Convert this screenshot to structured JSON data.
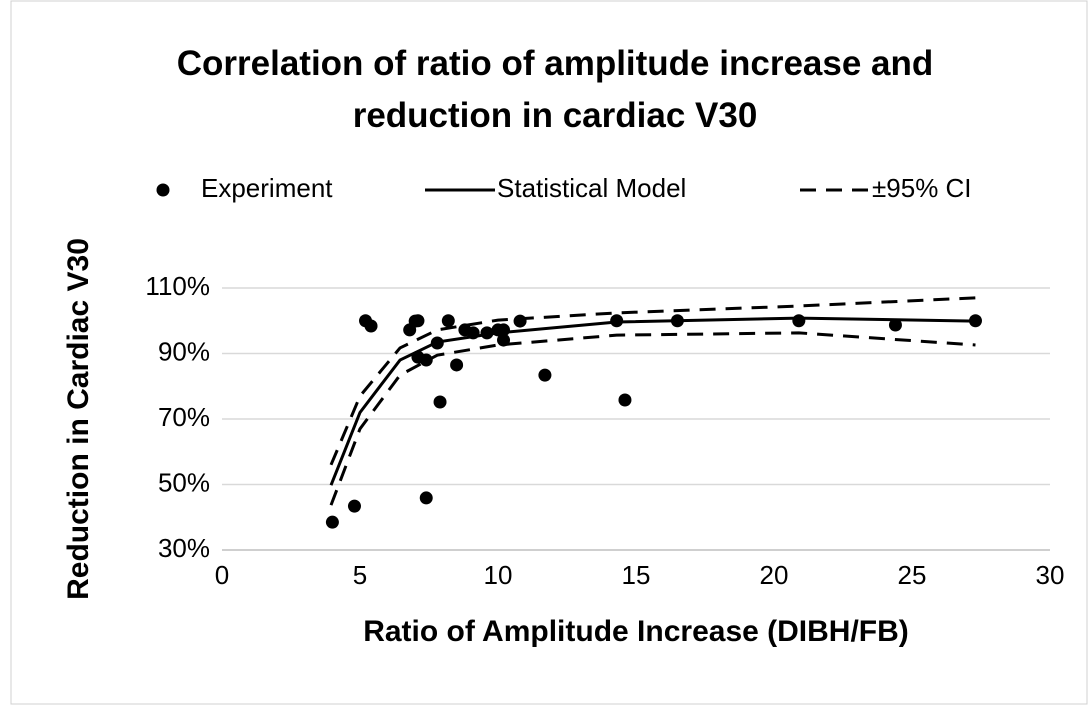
{
  "chart_data": {
    "type": "scatter",
    "title": "Correlation of ratio of amplitude increase and reduction in cardiac V30",
    "xlabel": "Ratio of Amplitude Increase (DIBH/FB)",
    "ylabel": "Reduction in Cardiac V30",
    "xlim": [
      0,
      30
    ],
    "xticks": [
      0,
      5,
      10,
      15,
      20,
      25,
      30
    ],
    "ylim": [
      30,
      110
    ],
    "yticks": [
      {
        "value": 30,
        "label": "30%"
      },
      {
        "value": 50,
        "label": "50%"
      },
      {
        "value": 70,
        "label": "70%"
      },
      {
        "value": 90,
        "label": "90%"
      },
      {
        "value": 110,
        "label": "110%"
      }
    ],
    "grid": true,
    "legend": "top",
    "series": [
      {
        "name": "Experiment",
        "type": "scatter",
        "color": "#000000",
        "x": [
          4.0,
          4.8,
          5.2,
          5.4,
          7.1,
          6.8,
          7.0,
          7.1,
          7.4,
          7.4,
          7.8,
          7.9,
          8.2,
          8.8,
          9.1,
          8.5,
          9.6,
          10.0,
          10.2,
          10.2,
          10.8,
          11.7,
          14.6,
          14.3,
          16.5,
          20.9,
          24.4,
          27.3
        ],
        "values": [
          38.5,
          43.4,
          100,
          98.4,
          88.9,
          97.2,
          99.9,
          100,
          88,
          45.9,
          93.2,
          75.2,
          100,
          97.2,
          96.3,
          86.5,
          96.3,
          97.2,
          97.2,
          94.1,
          99.9,
          83.4,
          75.8,
          100,
          100,
          100,
          98.7,
          100
        ]
      },
      {
        "name": "Statistical Model",
        "type": "line",
        "color": "#000000",
        "x": [
          3.95,
          5.0,
          6.45,
          7.8,
          10.0,
          14.3,
          20.9,
          27.3
        ],
        "values": [
          49.8,
          72,
          88,
          93.5,
          96.3,
          99.6,
          100.8,
          99.9
        ]
      },
      {
        "name": "±95% CI",
        "type": "dashed-band",
        "color": "#000000",
        "x": [
          3.95,
          5.0,
          6.45,
          7.8,
          10.0,
          14.3,
          20.9,
          27.3
        ],
        "upper": [
          56,
          77,
          91.7,
          97.2,
          100.2,
          102.4,
          104.5,
          107
        ],
        "lower": [
          43.7,
          67,
          83.4,
          89.5,
          92.6,
          95.6,
          96.3,
          92.6
        ]
      }
    ]
  }
}
